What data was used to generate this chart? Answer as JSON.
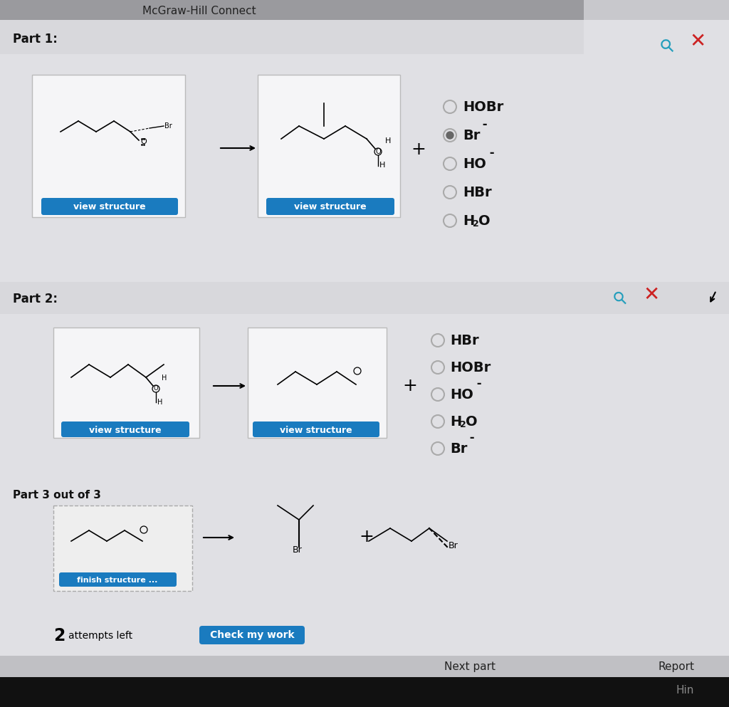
{
  "title": "McGraw-Hill Connect",
  "header_bg": "#9a9a9e",
  "header_right_bg": "#c8c8cc",
  "part_bar_bg": "#d0d0d4",
  "content_bg": "#e0e0e4",
  "white_box_bg": "#f5f5f7",
  "part1_label": "Part 1:",
  "part2_label": "Part 2:",
  "part3_label": "Part 3 out of 3",
  "view_structure_btn_color": "#1a7bbf",
  "view_structure_text": "view structure",
  "finish_structure_text": "finish structure ...",
  "check_my_work_text": "Check my work",
  "next_part_text": "Next part",
  "report_text": "Report",
  "hint_text": "Hin",
  "part1_options": [
    "HOBr",
    "Br-",
    "HO-",
    "HBr",
    "H2O"
  ],
  "part1_selected": 1,
  "part2_options": [
    "HBr",
    "HOBr",
    "HO-",
    "H2O",
    "Br-"
  ],
  "search_color": "#1a9bba",
  "x_color": "#cc2222",
  "bottom_bar_bg": "#c0c0c4",
  "black_bar_bg": "#111111"
}
